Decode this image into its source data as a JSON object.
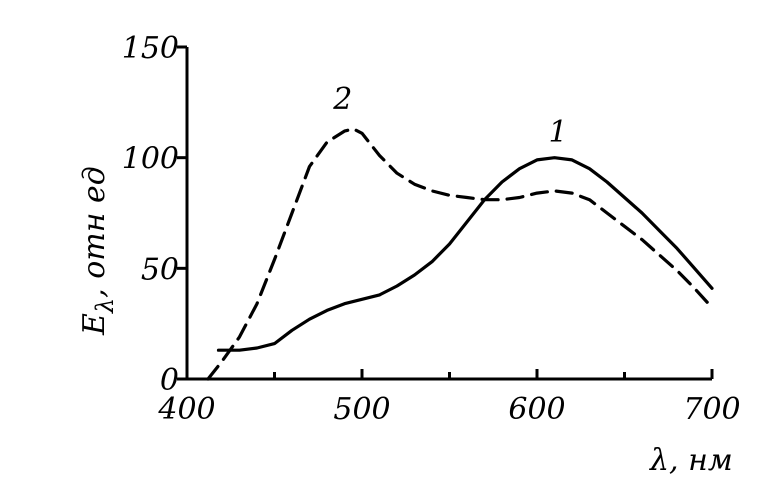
{
  "chart_data": {
    "type": "line",
    "xlabel": "λ, нм",
    "ylabel": "Eλ, отн ед",
    "ylabel_main": "E",
    "ylabel_sub": "λ",
    "ylabel_rest": ", отн ед",
    "xlim": [
      400,
      700
    ],
    "ylim": [
      0,
      150
    ],
    "x_ticks": [
      400,
      500,
      600,
      700
    ],
    "x_minor_ticks": [
      450,
      550,
      650
    ],
    "y_ticks": [
      0,
      50,
      100,
      150
    ],
    "grid": false,
    "series": [
      {
        "name": "1",
        "style": "solid",
        "x": [
          418,
          430,
          440,
          450,
          460,
          470,
          480,
          490,
          500,
          510,
          520,
          530,
          540,
          550,
          560,
          570,
          580,
          590,
          600,
          610,
          620,
          630,
          640,
          650,
          660,
          670,
          680,
          690,
          700
        ],
        "y": [
          13,
          13,
          14,
          16,
          22,
          27,
          31,
          34,
          36,
          38,
          42,
          47,
          53,
          61,
          71,
          81,
          89,
          95,
          99,
          100,
          99,
          95,
          89,
          82,
          75,
          67,
          59,
          50,
          41
        ]
      },
      {
        "name": "2",
        "style": "dashed",
        "x": [
          412,
          420,
          430,
          440,
          450,
          460,
          470,
          480,
          490,
          495,
          500,
          510,
          520,
          530,
          540,
          550,
          560,
          570,
          580,
          590,
          600,
          610,
          620,
          630,
          640,
          650,
          660,
          670,
          680,
          690,
          698
        ],
        "y": [
          0,
          8,
          19,
          34,
          54,
          75,
          96,
          107,
          112,
          113,
          111,
          101,
          93,
          88,
          85,
          83,
          82,
          81,
          81,
          82,
          84,
          85,
          84,
          81,
          75,
          69,
          63,
          56,
          49,
          41,
          34
        ]
      }
    ],
    "annotations": [
      {
        "text": "1",
        "x": 612,
        "y": 107
      },
      {
        "text": "2",
        "x": 489,
        "y": 122
      }
    ]
  }
}
